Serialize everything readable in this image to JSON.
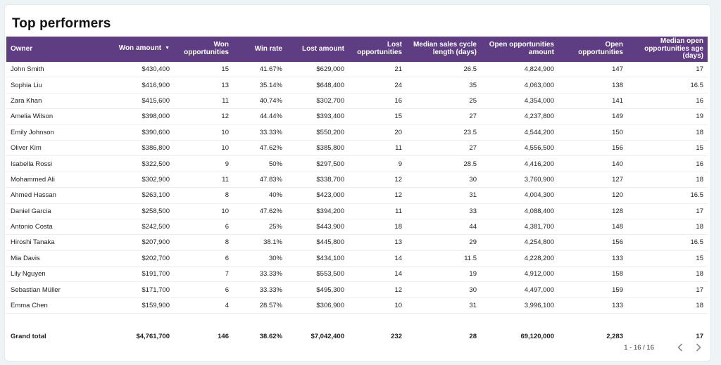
{
  "title": "Top performers",
  "columns": [
    {
      "label": "Owner"
    },
    {
      "label": "Won amount",
      "sorted": "desc"
    },
    {
      "label": "Won opportunities"
    },
    {
      "label": "Win rate"
    },
    {
      "label": "Lost amount"
    },
    {
      "label": "Lost opportunities"
    },
    {
      "label": "Median sales cycle length (days)"
    },
    {
      "label": "Open opportunities amount"
    },
    {
      "label": "Open opportunities"
    },
    {
      "label": "Median open opportunities age (days)"
    }
  ],
  "rows": [
    [
      "John Smith",
      "$430,400",
      "15",
      "41.67%",
      "$629,000",
      "21",
      "26.5",
      "4,824,900",
      "147",
      "17"
    ],
    [
      "Sophia Liu",
      "$416,900",
      "13",
      "35.14%",
      "$648,400",
      "24",
      "35",
      "4,063,000",
      "138",
      "16.5"
    ],
    [
      "Zara Khan",
      "$415,600",
      "11",
      "40.74%",
      "$302,700",
      "16",
      "25",
      "4,354,000",
      "141",
      "16"
    ],
    [
      "Amelia Wilson",
      "$398,000",
      "12",
      "44.44%",
      "$393,400",
      "15",
      "27",
      "4,237,800",
      "149",
      "19"
    ],
    [
      "Emily Johnson",
      "$390,600",
      "10",
      "33.33%",
      "$550,200",
      "20",
      "23.5",
      "4,544,200",
      "150",
      "18"
    ],
    [
      "Oliver Kim",
      "$386,800",
      "10",
      "47.62%",
      "$385,800",
      "11",
      "27",
      "4,556,500",
      "156",
      "15"
    ],
    [
      "Isabella Rossi",
      "$322,500",
      "9",
      "50%",
      "$297,500",
      "9",
      "28.5",
      "4,416,200",
      "140",
      "16"
    ],
    [
      "Mohammed Ali",
      "$302,900",
      "11",
      "47.83%",
      "$338,700",
      "12",
      "30",
      "3,760,900",
      "127",
      "18"
    ],
    [
      "Ahmed Hassan",
      "$263,100",
      "8",
      "40%",
      "$423,000",
      "12",
      "31",
      "4,004,300",
      "120",
      "16.5"
    ],
    [
      "Daniel Garcia",
      "$258,500",
      "10",
      "47.62%",
      "$394,200",
      "11",
      "33",
      "4,088,400",
      "128",
      "17"
    ],
    [
      "Antonio Costa",
      "$242,500",
      "6",
      "25%",
      "$443,900",
      "18",
      "44",
      "4,381,700",
      "148",
      "18"
    ],
    [
      "Hiroshi Tanaka",
      "$207,900",
      "8",
      "38.1%",
      "$445,800",
      "13",
      "29",
      "4,254,800",
      "156",
      "16.5"
    ],
    [
      "Mia Davis",
      "$202,700",
      "6",
      "30%",
      "$434,100",
      "14",
      "11.5",
      "4,228,200",
      "133",
      "15"
    ],
    [
      "Lily Nguyen",
      "$191,700",
      "7",
      "33.33%",
      "$553,500",
      "14",
      "19",
      "4,912,000",
      "158",
      "18"
    ],
    [
      "Sebastian Müller",
      "$171,700",
      "6",
      "33.33%",
      "$495,300",
      "12",
      "30",
      "4,497,000",
      "159",
      "17"
    ],
    [
      "Emma Chen",
      "$159,900",
      "4",
      "28.57%",
      "$306,900",
      "10",
      "31",
      "3,996,100",
      "133",
      "18"
    ]
  ],
  "grand_total": [
    "Grand total",
    "$4,761,700",
    "146",
    "38.62%",
    "$7,042,400",
    "232",
    "28",
    "69,120,000",
    "2,283",
    "17"
  ],
  "pager": {
    "text": "1 - 16 / 16",
    "prev_icon": "chevron-left-icon",
    "next_icon": "chevron-right-icon"
  },
  "colors": {
    "header_bg": "#5e3d82",
    "header_text": "#ffffff",
    "page_bg": "#eef3f6"
  }
}
